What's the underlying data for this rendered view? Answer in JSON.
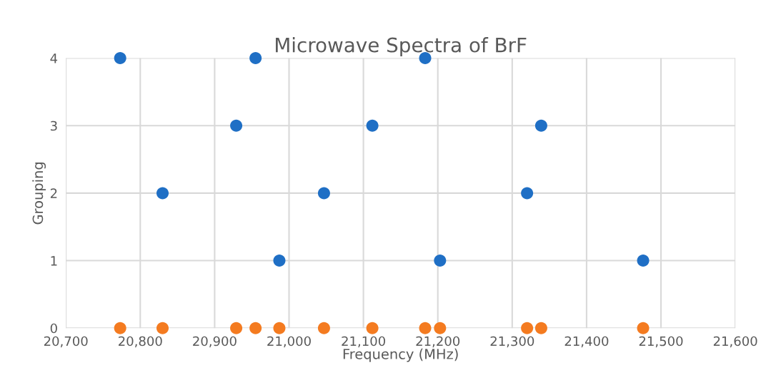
{
  "chart_data": {
    "type": "scatter",
    "title": "Microwave Spectra of BrF",
    "xlabel": "Frequency (MHz)",
    "ylabel": "Grouping",
    "series": [
      {
        "color": "#1f6fc5",
        "x": [
          20773,
          20830,
          20929,
          20955,
          20987,
          21047,
          21112,
          21183,
          21203,
          21320,
          21339,
          21476
        ],
        "values": [
          4,
          2,
          3,
          4,
          1,
          2,
          3,
          4,
          1,
          2,
          3,
          1
        ]
      },
      {
        "color": "#f47b20",
        "x": [
          20773,
          20830,
          20929,
          20955,
          20987,
          21047,
          21112,
          21183,
          21203,
          21320,
          21339,
          21476
        ],
        "values": [
          0,
          0,
          0,
          0,
          0,
          0,
          0,
          0,
          0,
          0,
          0,
          0
        ]
      }
    ],
    "xlim": [
      20700,
      21600
    ],
    "xticks": [
      {
        "value": 20700,
        "label": "20,700"
      },
      {
        "value": 20800,
        "label": "20,800"
      },
      {
        "value": 20900,
        "label": "20,900"
      },
      {
        "value": 21000,
        "label": "21,000"
      },
      {
        "value": 21100,
        "label": "21,100"
      },
      {
        "value": 21200,
        "label": "21,200"
      },
      {
        "value": 21300,
        "label": "21,300"
      },
      {
        "value": 21400,
        "label": "21,400"
      },
      {
        "value": 21500,
        "label": "21,500"
      },
      {
        "value": 21600,
        "label": "21,600"
      }
    ],
    "ylim": [
      0,
      4
    ],
    "yticks": [
      0,
      1,
      2,
      3,
      4
    ],
    "grid": true,
    "marker": "circle"
  }
}
